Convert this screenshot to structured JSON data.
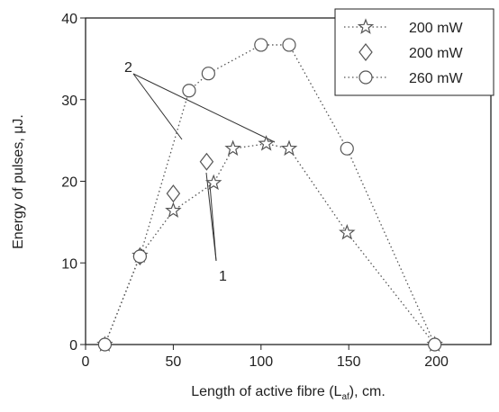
{
  "chart_data": {
    "type": "scatter",
    "x_label": "Length of active fibre (L",
    "x_label_subscript": "af",
    "x_label_suffix": "), cm.",
    "y_label": "Energy of pulses, μJ.",
    "xlim": [
      0,
      231
    ],
    "ylim": [
      0,
      40
    ],
    "xticks": [
      0,
      50,
      100,
      150,
      200
    ],
    "yticks": [
      0,
      10,
      20,
      30,
      40
    ],
    "legend": "upper right",
    "annotations": [
      "2",
      "1"
    ],
    "series": [
      {
        "name": "200 mW",
        "marker": "star",
        "linestyle": "dotted",
        "color": "#555555",
        "x": [
          11,
          31,
          50,
          73,
          84,
          103,
          116,
          149,
          199
        ],
        "values": [
          0,
          10.9,
          16.4,
          19.8,
          24,
          24.6,
          24,
          13.7,
          0
        ]
      },
      {
        "name": "200 mW",
        "marker": "diamond",
        "linestyle": "none",
        "color": "#555555",
        "x": [
          31,
          50,
          69
        ],
        "values": [
          10.8,
          18.5,
          22.4
        ]
      },
      {
        "name": "260 mW",
        "marker": "circle",
        "linestyle": "dotted",
        "color": "#555555",
        "x": [
          11,
          31,
          59,
          70,
          100,
          116,
          149,
          199
        ],
        "values": [
          0,
          10.8,
          31.1,
          33.2,
          36.7,
          36.7,
          24,
          0
        ]
      }
    ]
  }
}
